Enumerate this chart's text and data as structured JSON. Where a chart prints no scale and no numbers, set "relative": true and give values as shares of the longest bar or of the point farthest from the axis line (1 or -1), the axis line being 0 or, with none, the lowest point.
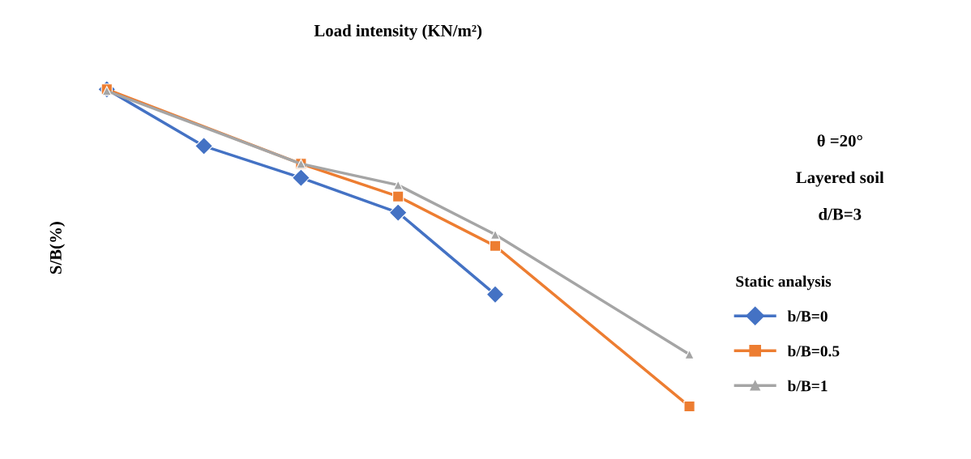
{
  "chart_data": {
    "type": "line",
    "title": "Load intensity (KN/m²)",
    "ylabel": "S/B(%)",
    "relative": true,
    "categories": [
      null,
      null,
      null,
      null,
      null,
      null,
      null
    ],
    "series": [
      {
        "name": "b/B=0",
        "color": "#4472c4",
        "marker": "diamond",
        "values": [
          1,
          0.821,
          0.721,
          0.611,
          0.353,
          null,
          null
        ]
      },
      {
        "name": "b/B=0.5",
        "color": "#ed7d31",
        "marker": "square",
        "values": [
          1,
          null,
          0.765,
          0.662,
          0.506,
          null,
          0
        ]
      },
      {
        "name": "b/B=1",
        "color": "#a5a5a5",
        "marker": "triangle",
        "values": [
          0.995,
          null,
          0.765,
          0.698,
          0.542,
          null,
          0.164
        ]
      }
    ],
    "annotations": [
      "θ =20°",
      "Layered soil",
      "d/B=3"
    ],
    "legend_title": "Static analysis",
    "legend": "right",
    "grid": false
  }
}
